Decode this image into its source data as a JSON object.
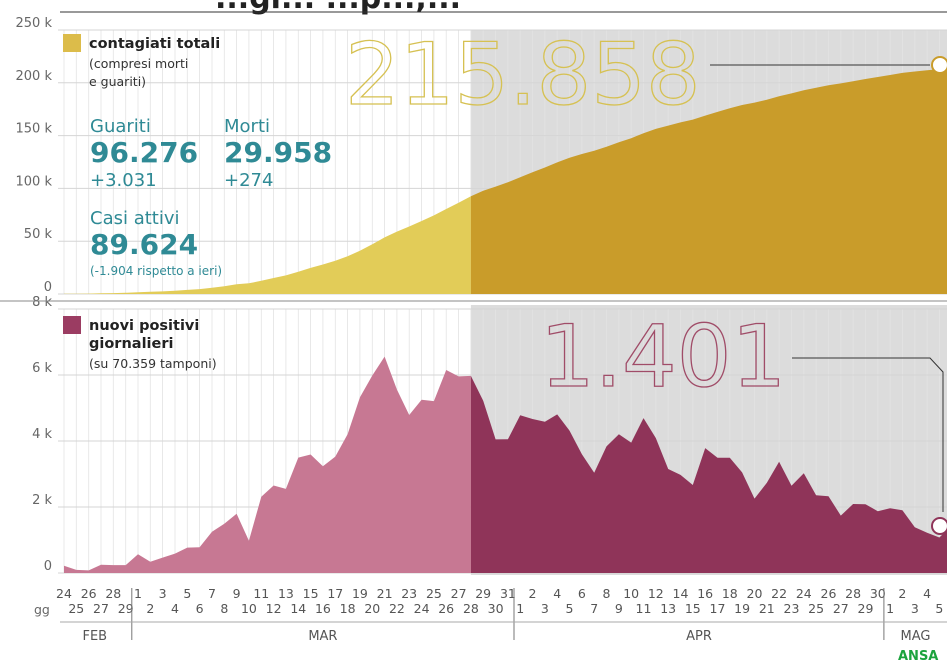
{
  "title_fragment": "...gi... ...p...,...",
  "source_logo": "ANSA",
  "stats": {
    "guariti_label": "Guariti",
    "guariti_value": "96.276",
    "guariti_delta": "+3.031",
    "morti_label": "Morti",
    "morti_value": "29.958",
    "morti_delta": "+274",
    "casi_label": "Casi attivi",
    "casi_value": "89.624",
    "casi_note": "(-1.904 rispetto a ieri)"
  },
  "axis": {
    "gg_label": "gg",
    "months": [
      "FEB",
      "MAR",
      "APR",
      "MAG"
    ],
    "day_labels": [
      "24",
      "25",
      "26",
      "27",
      "28",
      "29",
      "1",
      "2",
      "3",
      "4",
      "5",
      "6",
      "7",
      "8",
      "9",
      "10",
      "11",
      "12",
      "13",
      "14",
      "15",
      "16",
      "17",
      "18",
      "19",
      "20",
      "21",
      "22",
      "23",
      "24",
      "25",
      "26",
      "27",
      "28",
      "29",
      "30",
      "31",
      "1",
      "2",
      "3",
      "4",
      "5",
      "6",
      "7",
      "8",
      "9",
      "10",
      "11",
      "12",
      "13",
      "14",
      "15",
      "16",
      "17",
      "18",
      "19",
      "20",
      "21",
      "22",
      "23",
      "24",
      "25",
      "26",
      "27",
      "28",
      "29",
      "30",
      "1",
      "2",
      "3",
      "4",
      "5",
      "6",
      "7"
    ]
  },
  "colors": {
    "total_light": "#e2cc58",
    "total_dark": "#c99c2a",
    "new_light": "#c77893",
    "new_dark": "#8f3459",
    "shade": "#dcdcdc",
    "accent_teal": "#2f8a95",
    "legend_total": "#dcbc4a",
    "legend_new": "#9b3c62"
  },
  "chart_data": [
    {
      "type": "area",
      "legend": [
        "contagiati totali",
        "(compresi morti",
        "e guariti)"
      ],
      "big_number": "215.858",
      "ylim": [
        0,
        250000
      ],
      "yticks": [
        "0",
        "50 k",
        "100 k",
        "150 k",
        "200 k",
        "250 k"
      ],
      "x_start": "2020-02-24",
      "shaded_from": "2020-03-28",
      "values": [
        229,
        322,
        400,
        650,
        888,
        1128,
        1694,
        2036,
        2502,
        3089,
        3858,
        4636,
        5883,
        7375,
        9172,
        10149,
        12462,
        15113,
        17660,
        21157,
        24747,
        27980,
        31506,
        35713,
        41035,
        47021,
        53578,
        59138,
        63927,
        69176,
        74386,
        80539,
        86498,
        92472,
        97689,
        101739,
        105792,
        110574,
        115242,
        119827,
        124632,
        128948,
        132547,
        135586,
        139422,
        143626,
        147577,
        152271,
        156363,
        159516,
        162488,
        165155,
        168941,
        172434,
        175925,
        178972,
        181228,
        183957,
        187327,
        189973,
        192994,
        195351,
        197675,
        199414,
        201505,
        203591,
        205463,
        207428,
        209328,
        210717,
        211938,
        213013,
        214457,
        215858
      ]
    },
    {
      "type": "area",
      "legend": [
        "nuovi positivi",
        "giornalieri",
        "(su 70.359 tamponi)"
      ],
      "big_number": "1.401",
      "ylim": [
        0,
        8000
      ],
      "yticks": [
        "0",
        "2 k",
        "4 k",
        "6 k",
        "8 k"
      ],
      "x_start": "2020-02-24",
      "shaded_from": "2020-03-28",
      "values": [
        221,
        93,
        78,
        250,
        238,
        240,
        566,
        342,
        466,
        587,
        769,
        778,
        1247,
        1492,
        1797,
        977,
        2313,
        2651,
        2547,
        3497,
        3590,
        3233,
        3526,
        4207,
        5322,
        5986,
        6557,
        5560,
        4789,
        5249,
        5210,
        6153,
        5959,
        5974,
        5217,
        4050,
        4053,
        4782,
        4668,
        4585,
        4805,
        4316,
        3599,
        3039,
        3836,
        4204,
        3951,
        4694,
        4092,
        3153,
        2972,
        2667,
        3786,
        3493,
        3491,
        3047,
        2256,
        2729,
        3370,
        2646,
        3021,
        2357,
        2324,
        1739,
        2091,
        2086,
        1872,
        1965,
        1900,
        1389,
        1221,
        1075,
        1444,
        1401
      ]
    }
  ]
}
